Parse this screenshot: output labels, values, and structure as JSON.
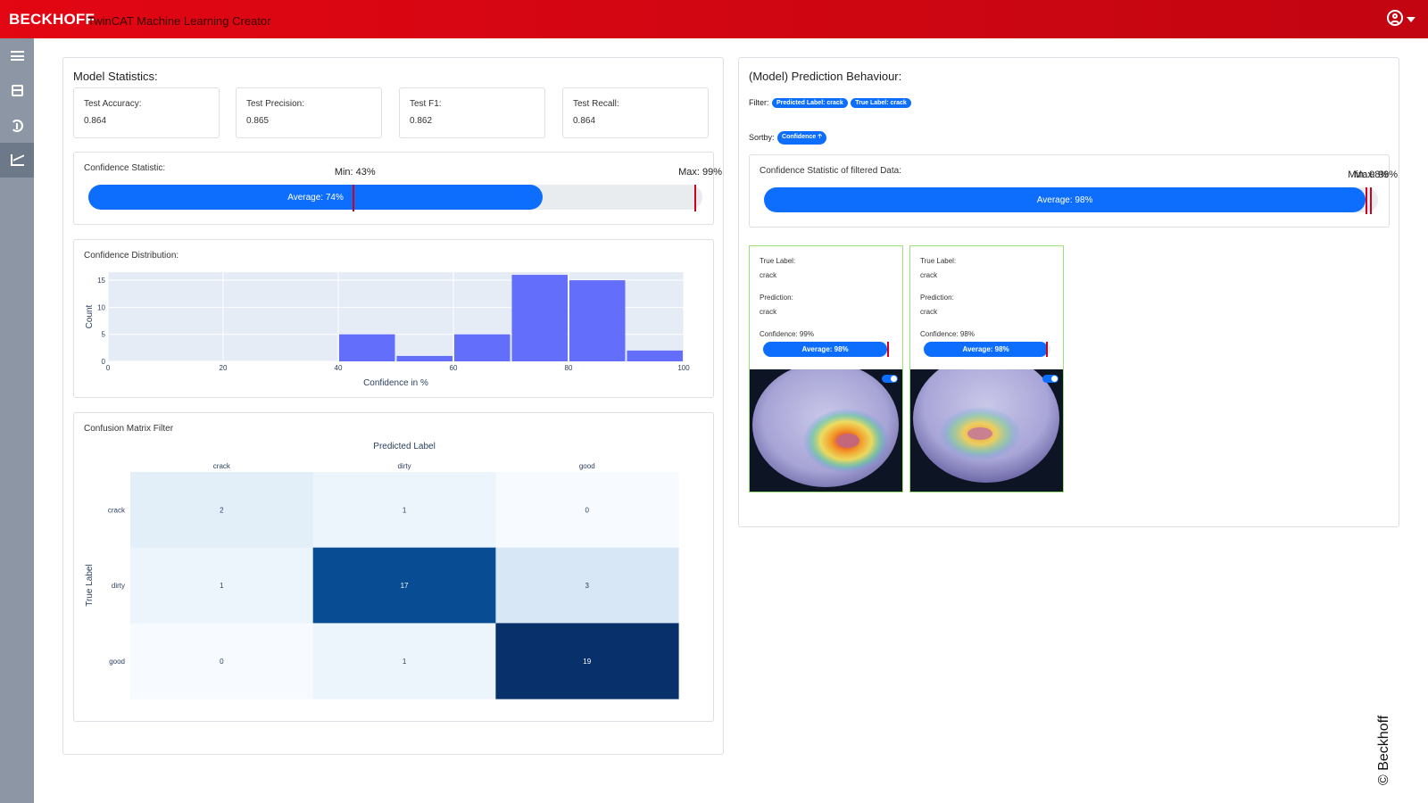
{
  "header": {
    "brand": "BECKHOFF",
    "title": "TwinCAT Machine Learning Creator",
    "user_icon": "user-circle-icon"
  },
  "sidebar": {
    "items": [
      {
        "icon": "menu-icon"
      },
      {
        "icon": "panel-icon"
      },
      {
        "icon": "cycle-icon"
      },
      {
        "icon": "chart-icon",
        "active": true
      }
    ]
  },
  "model_statistics": {
    "title": "Model Statistics:",
    "cards": [
      {
        "label": "Test Accuracy:",
        "value": "0.864"
      },
      {
        "label": "Test Precision:",
        "value": "0.865"
      },
      {
        "label": "Test F1:",
        "value": "0.862"
      },
      {
        "label": "Test Recall:",
        "value": "0.864"
      }
    ],
    "confidence": {
      "label": "Confidence Statistic:",
      "min_label": "Min: 43%",
      "max_label": "Max: 99%",
      "avg_label": "Average: 74%",
      "min": 43,
      "max": 99,
      "average": 74
    }
  },
  "distribution": {
    "label": "Confidence Distribution:"
  },
  "confusion": {
    "label": "Confusion Matrix Filter"
  },
  "prediction": {
    "title": "(Model) Prediction Behaviour:",
    "filter_label": "Filter:",
    "filter_chips": [
      "Predicted Label: crack",
      "True Label: crack"
    ],
    "sort_label": "Sortby:",
    "sort_chip": "Confidence",
    "sort_arrow": "🡡",
    "confidence": {
      "label": "Confidence Statistic of filtered Data:",
      "min_label": "Min: 98%",
      "max_label": "Max: 99%",
      "avg_label": "Average: 98%",
      "min": 98,
      "max": 99,
      "average": 98
    },
    "cards": [
      {
        "true_label_title": "True Label:",
        "true_label": "crack",
        "prediction_title": "Prediction:",
        "prediction": "crack",
        "confidence_text": "Confidence: 99%",
        "avg_label": "Average: 98%",
        "confidence": 99,
        "average": 98
      },
      {
        "true_label_title": "True Label:",
        "true_label": "crack",
        "prediction_title": "Prediction:",
        "prediction": "crack",
        "confidence_text": "Confidence: 98%",
        "avg_label": "Average: 98%",
        "confidence": 98,
        "average": 98
      }
    ]
  },
  "copyright": "© Beckhoff",
  "chart_data": [
    {
      "type": "bar",
      "xlabel": "Confidence in %",
      "ylabel": "Count",
      "xlim": [
        0,
        100
      ],
      "ylim": [
        0,
        16.5
      ],
      "xticks": [
        0,
        20,
        40,
        60,
        80,
        100
      ],
      "yticks": [
        0,
        5,
        10,
        15
      ],
      "bins": [
        {
          "x0": 40,
          "x1": 50,
          "count": 5
        },
        {
          "x0": 50,
          "x1": 60,
          "count": 1
        },
        {
          "x0": 60,
          "x1": 70,
          "count": 5
        },
        {
          "x0": 70,
          "x1": 80,
          "count": 16
        },
        {
          "x0": 80,
          "x1": 90,
          "count": 15
        },
        {
          "x0": 90,
          "x1": 100,
          "count": 2
        }
      ],
      "color": "#636efa"
    },
    {
      "type": "heatmap",
      "xlabel": "Predicted Label",
      "ylabel": "True Label",
      "x": [
        "crack",
        "dirty",
        "good"
      ],
      "y": [
        "crack",
        "dirty",
        "good"
      ],
      "z": [
        [
          2,
          1,
          0
        ],
        [
          1,
          17,
          3
        ],
        [
          0,
          1,
          19
        ]
      ],
      "colorscale": "Blues"
    }
  ]
}
